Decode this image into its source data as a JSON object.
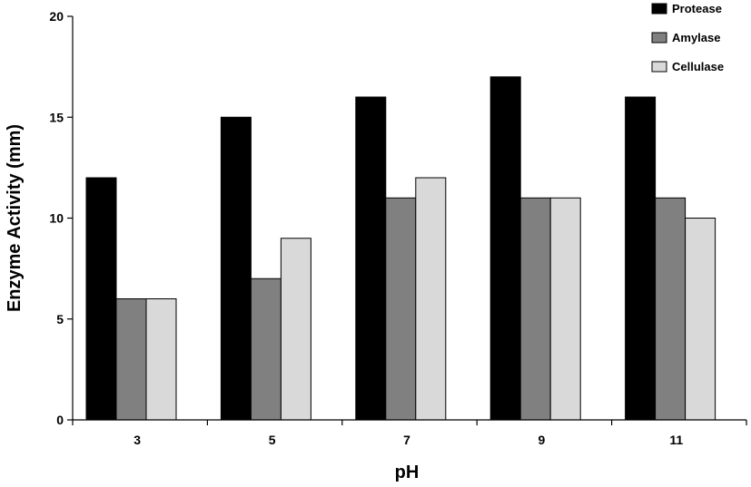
{
  "chart_data": {
    "type": "bar",
    "xlabel": "pH",
    "ylabel": "Enzyme Activity (mm)",
    "categories": [
      "3",
      "5",
      "7",
      "9",
      "11"
    ],
    "series": [
      {
        "name": "Protease",
        "values": [
          12,
          15,
          16,
          17,
          16
        ],
        "color": "#000000"
      },
      {
        "name": "Amylase",
        "values": [
          6,
          7,
          11,
          11,
          11
        ],
        "color": "#808080"
      },
      {
        "name": "Cellulase",
        "values": [
          6,
          9,
          12,
          11,
          10
        ],
        "color": "#d9d9d9"
      }
    ],
    "ylim": [
      0,
      20
    ],
    "yticks": [
      0,
      5,
      10,
      15,
      20
    ],
    "grid": false,
    "legend_position": "top-right"
  }
}
